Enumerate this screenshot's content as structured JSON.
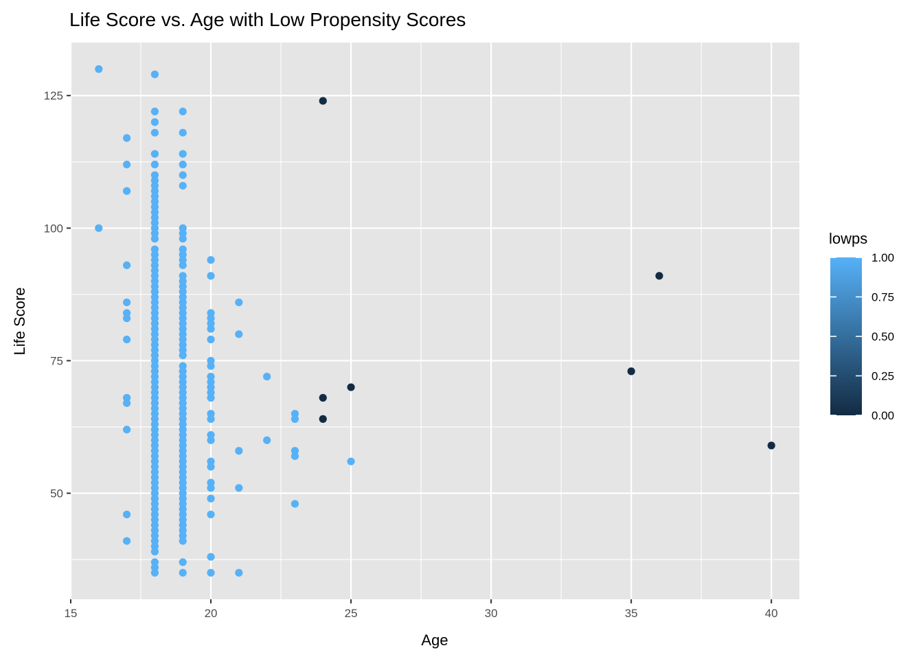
{
  "chart_data": {
    "type": "scatter",
    "title": "Life Score vs. Age with Low Propensity Scores",
    "xlabel": "Age",
    "ylabel": "Life Score",
    "xlim": [
      15,
      41
    ],
    "ylim": [
      30,
      135
    ],
    "x_ticks": [
      15,
      20,
      25,
      30,
      35,
      40
    ],
    "y_ticks": [
      50,
      75,
      100,
      125
    ],
    "grid": true,
    "legend": {
      "title": "lowps",
      "placement": "right",
      "type": "continuous-colorbar",
      "ticks": [
        "0.00",
        "0.25",
        "0.50",
        "0.75",
        "1.00"
      ],
      "color_low": "#132b43",
      "color_high": "#56b1f7"
    },
    "colors": {
      "panel": "#e5e5e5",
      "grid": "#ffffff",
      "low": "#132b43",
      "high": "#56b1f7"
    },
    "points": [
      {
        "x": 16,
        "y": 130,
        "lowps": 1
      },
      {
        "x": 16,
        "y": 100,
        "lowps": 1
      },
      {
        "x": 17,
        "y": 117,
        "lowps": 1
      },
      {
        "x": 17,
        "y": 112,
        "lowps": 1
      },
      {
        "x": 17,
        "y": 107,
        "lowps": 1
      },
      {
        "x": 17,
        "y": 93,
        "lowps": 1
      },
      {
        "x": 17,
        "y": 86,
        "lowps": 1
      },
      {
        "x": 17,
        "y": 84,
        "lowps": 1
      },
      {
        "x": 17,
        "y": 83,
        "lowps": 1
      },
      {
        "x": 17,
        "y": 79,
        "lowps": 1
      },
      {
        "x": 17,
        "y": 68,
        "lowps": 1
      },
      {
        "x": 17,
        "y": 67,
        "lowps": 1
      },
      {
        "x": 17,
        "y": 62,
        "lowps": 1
      },
      {
        "x": 17,
        "y": 46,
        "lowps": 1
      },
      {
        "x": 17,
        "y": 41,
        "lowps": 1
      },
      {
        "x": 18,
        "y": 129,
        "lowps": 1
      },
      {
        "x": 18,
        "y": 122,
        "lowps": 1
      },
      {
        "x": 18,
        "y": 120,
        "lowps": 1
      },
      {
        "x": 18,
        "y": 118,
        "lowps": 1
      },
      {
        "x": 18,
        "y": 114,
        "lowps": 1
      },
      {
        "x": 18,
        "y": 112,
        "lowps": 1
      },
      {
        "x": 18,
        "y": 110,
        "lowps": 1
      },
      {
        "x": 18,
        "y": 109,
        "lowps": 1
      },
      {
        "x": 18,
        "y": 108,
        "lowps": 1
      },
      {
        "x": 18,
        "y": 107,
        "lowps": 1
      },
      {
        "x": 18,
        "y": 106,
        "lowps": 1
      },
      {
        "x": 18,
        "y": 105,
        "lowps": 1
      },
      {
        "x": 18,
        "y": 104,
        "lowps": 1
      },
      {
        "x": 18,
        "y": 103,
        "lowps": 1
      },
      {
        "x": 18,
        "y": 102,
        "lowps": 1
      },
      {
        "x": 18,
        "y": 101,
        "lowps": 1
      },
      {
        "x": 18,
        "y": 100,
        "lowps": 1
      },
      {
        "x": 18,
        "y": 99,
        "lowps": 1
      },
      {
        "x": 18,
        "y": 98,
        "lowps": 1
      },
      {
        "x": 18,
        "y": 96,
        "lowps": 1
      },
      {
        "x": 18,
        "y": 95,
        "lowps": 1
      },
      {
        "x": 18,
        "y": 94,
        "lowps": 1
      },
      {
        "x": 18,
        "y": 93,
        "lowps": 1
      },
      {
        "x": 18,
        "y": 92,
        "lowps": 1
      },
      {
        "x": 18,
        "y": 91,
        "lowps": 1
      },
      {
        "x": 18,
        "y": 90,
        "lowps": 1
      },
      {
        "x": 18,
        "y": 89,
        "lowps": 1
      },
      {
        "x": 18,
        "y": 88,
        "lowps": 1
      },
      {
        "x": 18,
        "y": 87,
        "lowps": 1
      },
      {
        "x": 18,
        "y": 86,
        "lowps": 1
      },
      {
        "x": 18,
        "y": 85,
        "lowps": 1
      },
      {
        "x": 18,
        "y": 84,
        "lowps": 1
      },
      {
        "x": 18,
        "y": 83,
        "lowps": 1
      },
      {
        "x": 18,
        "y": 82,
        "lowps": 1
      },
      {
        "x": 18,
        "y": 81,
        "lowps": 1
      },
      {
        "x": 18,
        "y": 80,
        "lowps": 1
      },
      {
        "x": 18,
        "y": 79,
        "lowps": 1
      },
      {
        "x": 18,
        "y": 78,
        "lowps": 1
      },
      {
        "x": 18,
        "y": 77,
        "lowps": 1
      },
      {
        "x": 18,
        "y": 76,
        "lowps": 1
      },
      {
        "x": 18,
        "y": 75,
        "lowps": 1
      },
      {
        "x": 18,
        "y": 74,
        "lowps": 1
      },
      {
        "x": 18,
        "y": 73,
        "lowps": 1
      },
      {
        "x": 18,
        "y": 72,
        "lowps": 1
      },
      {
        "x": 18,
        "y": 71,
        "lowps": 1
      },
      {
        "x": 18,
        "y": 70,
        "lowps": 1
      },
      {
        "x": 18,
        "y": 69,
        "lowps": 1
      },
      {
        "x": 18,
        "y": 68,
        "lowps": 1
      },
      {
        "x": 18,
        "y": 67,
        "lowps": 1
      },
      {
        "x": 18,
        "y": 66,
        "lowps": 1
      },
      {
        "x": 18,
        "y": 65,
        "lowps": 1
      },
      {
        "x": 18,
        "y": 64,
        "lowps": 1
      },
      {
        "x": 18,
        "y": 63,
        "lowps": 1
      },
      {
        "x": 18,
        "y": 62,
        "lowps": 1
      },
      {
        "x": 18,
        "y": 61,
        "lowps": 1
      },
      {
        "x": 18,
        "y": 60,
        "lowps": 1
      },
      {
        "x": 18,
        "y": 59,
        "lowps": 1
      },
      {
        "x": 18,
        "y": 58,
        "lowps": 1
      },
      {
        "x": 18,
        "y": 57,
        "lowps": 1
      },
      {
        "x": 18,
        "y": 56,
        "lowps": 1
      },
      {
        "x": 18,
        "y": 55,
        "lowps": 1
      },
      {
        "x": 18,
        "y": 54,
        "lowps": 1
      },
      {
        "x": 18,
        "y": 53,
        "lowps": 1
      },
      {
        "x": 18,
        "y": 52,
        "lowps": 1
      },
      {
        "x": 18,
        "y": 51,
        "lowps": 1
      },
      {
        "x": 18,
        "y": 50,
        "lowps": 1
      },
      {
        "x": 18,
        "y": 49,
        "lowps": 1
      },
      {
        "x": 18,
        "y": 48,
        "lowps": 1
      },
      {
        "x": 18,
        "y": 47,
        "lowps": 1
      },
      {
        "x": 18,
        "y": 46,
        "lowps": 1
      },
      {
        "x": 18,
        "y": 45,
        "lowps": 1
      },
      {
        "x": 18,
        "y": 44,
        "lowps": 1
      },
      {
        "x": 18,
        "y": 43,
        "lowps": 1
      },
      {
        "x": 18,
        "y": 42,
        "lowps": 1
      },
      {
        "x": 18,
        "y": 41,
        "lowps": 1
      },
      {
        "x": 18,
        "y": 40,
        "lowps": 1
      },
      {
        "x": 18,
        "y": 39,
        "lowps": 1
      },
      {
        "x": 18,
        "y": 37,
        "lowps": 1
      },
      {
        "x": 18,
        "y": 36,
        "lowps": 1
      },
      {
        "x": 18,
        "y": 35,
        "lowps": 1
      },
      {
        "x": 19,
        "y": 122,
        "lowps": 1
      },
      {
        "x": 19,
        "y": 118,
        "lowps": 1
      },
      {
        "x": 19,
        "y": 114,
        "lowps": 1
      },
      {
        "x": 19,
        "y": 112,
        "lowps": 1
      },
      {
        "x": 19,
        "y": 110,
        "lowps": 1
      },
      {
        "x": 19,
        "y": 108,
        "lowps": 1
      },
      {
        "x": 19,
        "y": 100,
        "lowps": 1
      },
      {
        "x": 19,
        "y": 99,
        "lowps": 1
      },
      {
        "x": 19,
        "y": 98,
        "lowps": 1
      },
      {
        "x": 19,
        "y": 96,
        "lowps": 1
      },
      {
        "x": 19,
        "y": 95,
        "lowps": 1
      },
      {
        "x": 19,
        "y": 94,
        "lowps": 1
      },
      {
        "x": 19,
        "y": 93,
        "lowps": 1
      },
      {
        "x": 19,
        "y": 91,
        "lowps": 1
      },
      {
        "x": 19,
        "y": 90,
        "lowps": 1
      },
      {
        "x": 19,
        "y": 89,
        "lowps": 1
      },
      {
        "x": 19,
        "y": 88,
        "lowps": 1
      },
      {
        "x": 19,
        "y": 87,
        "lowps": 1
      },
      {
        "x": 19,
        "y": 86,
        "lowps": 1
      },
      {
        "x": 19,
        "y": 85,
        "lowps": 1
      },
      {
        "x": 19,
        "y": 84,
        "lowps": 1
      },
      {
        "x": 19,
        "y": 83,
        "lowps": 1
      },
      {
        "x": 19,
        "y": 82,
        "lowps": 1
      },
      {
        "x": 19,
        "y": 81,
        "lowps": 1
      },
      {
        "x": 19,
        "y": 80,
        "lowps": 1
      },
      {
        "x": 19,
        "y": 79,
        "lowps": 1
      },
      {
        "x": 19,
        "y": 78,
        "lowps": 1
      },
      {
        "x": 19,
        "y": 77,
        "lowps": 1
      },
      {
        "x": 19,
        "y": 76,
        "lowps": 1
      },
      {
        "x": 19,
        "y": 74,
        "lowps": 1
      },
      {
        "x": 19,
        "y": 73,
        "lowps": 1
      },
      {
        "x": 19,
        "y": 72,
        "lowps": 1
      },
      {
        "x": 19,
        "y": 71,
        "lowps": 1
      },
      {
        "x": 19,
        "y": 70,
        "lowps": 1
      },
      {
        "x": 19,
        "y": 69,
        "lowps": 1
      },
      {
        "x": 19,
        "y": 68,
        "lowps": 1
      },
      {
        "x": 19,
        "y": 67,
        "lowps": 1
      },
      {
        "x": 19,
        "y": 66,
        "lowps": 1
      },
      {
        "x": 19,
        "y": 65,
        "lowps": 1
      },
      {
        "x": 19,
        "y": 64,
        "lowps": 1
      },
      {
        "x": 19,
        "y": 63,
        "lowps": 1
      },
      {
        "x": 19,
        "y": 62,
        "lowps": 1
      },
      {
        "x": 19,
        "y": 61,
        "lowps": 1
      },
      {
        "x": 19,
        "y": 60,
        "lowps": 1
      },
      {
        "x": 19,
        "y": 59,
        "lowps": 1
      },
      {
        "x": 19,
        "y": 58,
        "lowps": 1
      },
      {
        "x": 19,
        "y": 57,
        "lowps": 1
      },
      {
        "x": 19,
        "y": 56,
        "lowps": 1
      },
      {
        "x": 19,
        "y": 55,
        "lowps": 1
      },
      {
        "x": 19,
        "y": 54,
        "lowps": 1
      },
      {
        "x": 19,
        "y": 53,
        "lowps": 1
      },
      {
        "x": 19,
        "y": 52,
        "lowps": 1
      },
      {
        "x": 19,
        "y": 51,
        "lowps": 1
      },
      {
        "x": 19,
        "y": 50,
        "lowps": 1
      },
      {
        "x": 19,
        "y": 49,
        "lowps": 1
      },
      {
        "x": 19,
        "y": 48,
        "lowps": 1
      },
      {
        "x": 19,
        "y": 47,
        "lowps": 1
      },
      {
        "x": 19,
        "y": 46,
        "lowps": 1
      },
      {
        "x": 19,
        "y": 45,
        "lowps": 1
      },
      {
        "x": 19,
        "y": 44,
        "lowps": 1
      },
      {
        "x": 19,
        "y": 43,
        "lowps": 1
      },
      {
        "x": 19,
        "y": 42,
        "lowps": 1
      },
      {
        "x": 19,
        "y": 41,
        "lowps": 1
      },
      {
        "x": 19,
        "y": 37,
        "lowps": 1
      },
      {
        "x": 19,
        "y": 35,
        "lowps": 1
      },
      {
        "x": 20,
        "y": 94,
        "lowps": 1
      },
      {
        "x": 20,
        "y": 91,
        "lowps": 1
      },
      {
        "x": 20,
        "y": 84,
        "lowps": 1
      },
      {
        "x": 20,
        "y": 83,
        "lowps": 1
      },
      {
        "x": 20,
        "y": 82,
        "lowps": 1
      },
      {
        "x": 20,
        "y": 81,
        "lowps": 1
      },
      {
        "x": 20,
        "y": 79,
        "lowps": 1
      },
      {
        "x": 20,
        "y": 75,
        "lowps": 1
      },
      {
        "x": 20,
        "y": 74,
        "lowps": 1
      },
      {
        "x": 20,
        "y": 72,
        "lowps": 1
      },
      {
        "x": 20,
        "y": 71,
        "lowps": 1
      },
      {
        "x": 20,
        "y": 70,
        "lowps": 1
      },
      {
        "x": 20,
        "y": 69,
        "lowps": 1
      },
      {
        "x": 20,
        "y": 68,
        "lowps": 1
      },
      {
        "x": 20,
        "y": 65,
        "lowps": 1
      },
      {
        "x": 20,
        "y": 64,
        "lowps": 1
      },
      {
        "x": 20,
        "y": 61,
        "lowps": 1
      },
      {
        "x": 20,
        "y": 60,
        "lowps": 1
      },
      {
        "x": 20,
        "y": 56,
        "lowps": 1
      },
      {
        "x": 20,
        "y": 55,
        "lowps": 1
      },
      {
        "x": 20,
        "y": 52,
        "lowps": 1
      },
      {
        "x": 20,
        "y": 51,
        "lowps": 1
      },
      {
        "x": 20,
        "y": 49,
        "lowps": 1
      },
      {
        "x": 20,
        "y": 46,
        "lowps": 1
      },
      {
        "x": 20,
        "y": 38,
        "lowps": 1
      },
      {
        "x": 20,
        "y": 35,
        "lowps": 1
      },
      {
        "x": 21,
        "y": 86,
        "lowps": 1
      },
      {
        "x": 21,
        "y": 80,
        "lowps": 1
      },
      {
        "x": 21,
        "y": 58,
        "lowps": 1
      },
      {
        "x": 21,
        "y": 51,
        "lowps": 1
      },
      {
        "x": 21,
        "y": 35,
        "lowps": 1
      },
      {
        "x": 22,
        "y": 72,
        "lowps": 1
      },
      {
        "x": 22,
        "y": 60,
        "lowps": 1
      },
      {
        "x": 23,
        "y": 65,
        "lowps": 1
      },
      {
        "x": 23,
        "y": 64,
        "lowps": 1
      },
      {
        "x": 23,
        "y": 58,
        "lowps": 1
      },
      {
        "x": 23,
        "y": 57,
        "lowps": 1
      },
      {
        "x": 23,
        "y": 48,
        "lowps": 1
      },
      {
        "x": 24,
        "y": 124,
        "lowps": 0
      },
      {
        "x": 24,
        "y": 68,
        "lowps": 0
      },
      {
        "x": 24,
        "y": 64,
        "lowps": 0
      },
      {
        "x": 25,
        "y": 70,
        "lowps": 0
      },
      {
        "x": 25,
        "y": 56,
        "lowps": 1
      },
      {
        "x": 35,
        "y": 73,
        "lowps": 0
      },
      {
        "x": 36,
        "y": 91,
        "lowps": 0
      },
      {
        "x": 40,
        "y": 59,
        "lowps": 0
      }
    ]
  }
}
